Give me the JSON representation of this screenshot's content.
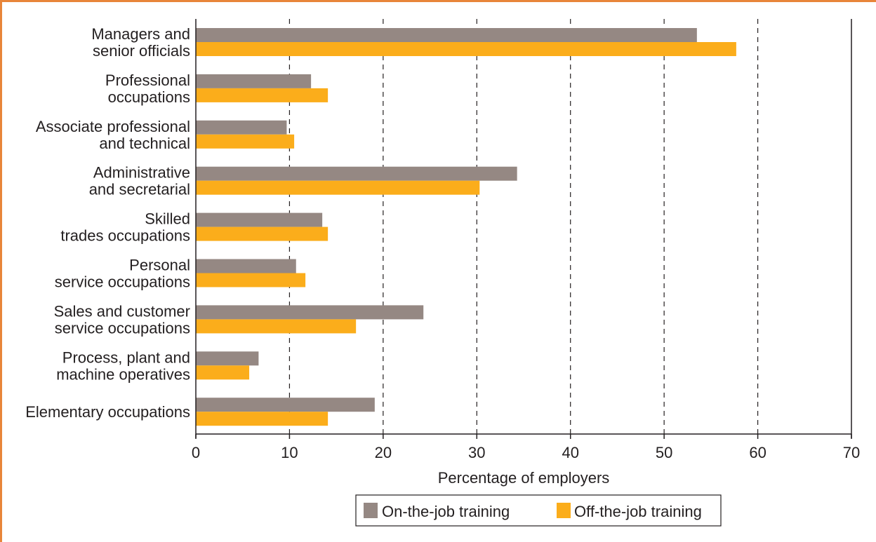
{
  "chart_data": {
    "type": "bar",
    "orientation": "horizontal",
    "title": "",
    "xlabel": "Percentage of employers",
    "ylabel": "",
    "xlim": [
      0,
      70
    ],
    "xticks": [
      0,
      10,
      20,
      30,
      40,
      50,
      60,
      70
    ],
    "grid": "vertical dashed",
    "legend_position": "bottom-center",
    "categories": [
      [
        "Managers and",
        "senior officials"
      ],
      [
        "Professional",
        "occupations"
      ],
      [
        "Associate professional",
        "and technical"
      ],
      [
        "Administrative",
        "and secretarial"
      ],
      [
        "Skilled",
        "trades occupations"
      ],
      [
        "Personal",
        "service occupations"
      ],
      [
        "Sales and customer",
        "service occupations"
      ],
      [
        "Process, plant and",
        "machine operatives"
      ],
      [
        "Elementary occupations"
      ]
    ],
    "series": [
      {
        "name": "On-the-job training",
        "color": "#958883",
        "values": [
          53.5,
          12.3,
          9.7,
          34.3,
          13.5,
          10.7,
          24.3,
          6.7,
          19.1
        ]
      },
      {
        "name": "Off-the-job training",
        "color": "#fbad1b",
        "values": [
          57.7,
          14.1,
          10.5,
          30.3,
          14.1,
          11.7,
          17.1,
          5.7,
          14.1
        ]
      }
    ]
  },
  "colors": {
    "frame": "#e8853a",
    "axis": "#231f20",
    "grid": "#231f20"
  }
}
